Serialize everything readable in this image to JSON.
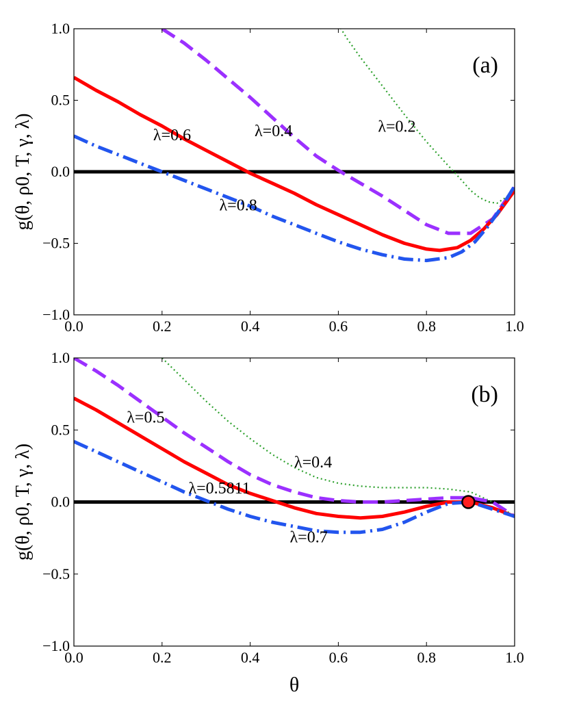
{
  "chart_data": [
    {
      "type": "line",
      "panel_label": "(a)",
      "xlabel": "",
      "ylabel": "g(θ, ρ0, T, γ, λ)",
      "xlim": [
        0.0,
        1.0
      ],
      "ylim": [
        -1.0,
        1.0
      ],
      "xticks": [
        "0.0",
        "0.2",
        "0.4",
        "0.6",
        "0.8",
        "1.0"
      ],
      "yticks": [
        "−1.0",
        "−0.5",
        "0.0",
        "0.5",
        "1.0"
      ],
      "zero_line": true,
      "series": [
        {
          "name": "λ=0.2",
          "style": "dotted",
          "color": "#2ca02c",
          "x": [
            0.6,
            0.62,
            0.65,
            0.7,
            0.75,
            0.8,
            0.85,
            0.88,
            0.9,
            0.92,
            0.94,
            0.96,
            0.98,
            1.0
          ],
          "y": [
            1.03,
            0.93,
            0.8,
            0.6,
            0.4,
            0.21,
            0.04,
            -0.06,
            -0.13,
            -0.18,
            -0.21,
            -0.22,
            -0.18,
            -0.12
          ]
        },
        {
          "name": "λ=0.4",
          "style": "dashed",
          "color": "#9b30ff",
          "x": [
            0.2,
            0.25,
            0.3,
            0.35,
            0.4,
            0.45,
            0.5,
            0.55,
            0.6,
            0.65,
            0.7,
            0.75,
            0.8,
            0.85,
            0.9,
            0.95,
            1.0
          ],
          "y": [
            1.0,
            0.9,
            0.78,
            0.65,
            0.52,
            0.38,
            0.24,
            0.11,
            0.01,
            -0.08,
            -0.17,
            -0.27,
            -0.37,
            -0.43,
            -0.43,
            -0.33,
            -0.11
          ]
        },
        {
          "name": "λ=0.6",
          "style": "solid",
          "color": "#ff0000",
          "x": [
            0.0,
            0.05,
            0.1,
            0.15,
            0.2,
            0.25,
            0.3,
            0.35,
            0.4,
            0.45,
            0.5,
            0.55,
            0.6,
            0.65,
            0.7,
            0.75,
            0.8,
            0.83,
            0.87,
            0.9,
            0.93,
            0.96,
            1.0
          ],
          "y": [
            0.66,
            0.57,
            0.49,
            0.4,
            0.32,
            0.23,
            0.15,
            0.07,
            -0.01,
            -0.08,
            -0.15,
            -0.23,
            -0.3,
            -0.37,
            -0.44,
            -0.5,
            -0.54,
            -0.55,
            -0.53,
            -0.48,
            -0.4,
            -0.3,
            -0.13
          ]
        },
        {
          "name": "λ=0.8",
          "style": "dashdot",
          "color": "#2255ee",
          "x": [
            0.0,
            0.05,
            0.1,
            0.15,
            0.2,
            0.25,
            0.3,
            0.35,
            0.4,
            0.45,
            0.5,
            0.55,
            0.6,
            0.65,
            0.7,
            0.75,
            0.8,
            0.85,
            0.88,
            0.91,
            0.94,
            0.97,
            1.0
          ],
          "y": [
            0.25,
            0.18,
            0.12,
            0.06,
            0.0,
            -0.06,
            -0.12,
            -0.18,
            -0.24,
            -0.31,
            -0.37,
            -0.43,
            -0.49,
            -0.54,
            -0.58,
            -0.61,
            -0.62,
            -0.6,
            -0.56,
            -0.49,
            -0.38,
            -0.25,
            -0.1
          ]
        }
      ],
      "annotations": [
        {
          "text": "λ=0.6",
          "x": 0.18,
          "y": 0.22
        },
        {
          "text": "λ=0.4",
          "x": 0.41,
          "y": 0.25
        },
        {
          "text": "λ=0.2",
          "x": 0.69,
          "y": 0.28
        },
        {
          "text": "λ=0.8",
          "x": 0.33,
          "y": -0.27
        }
      ]
    },
    {
      "type": "line",
      "panel_label": "(b)",
      "xlabel": "θ",
      "ylabel": "g(θ, ρ0, T, γ, λ)",
      "xlim": [
        0.0,
        1.0
      ],
      "ylim": [
        -1.0,
        1.0
      ],
      "xticks": [
        "0.0",
        "0.2",
        "0.4",
        "0.6",
        "0.8",
        "1.0"
      ],
      "yticks": [
        "−1.0",
        "−0.5",
        "0.0",
        "0.5",
        "1.0"
      ],
      "zero_line": true,
      "marker": {
        "x": 0.895,
        "y": 0.0,
        "color": "#ff2020"
      },
      "series": [
        {
          "name": "λ=0.4",
          "style": "dotted",
          "color": "#2ca02c",
          "x": [
            0.2,
            0.25,
            0.3,
            0.35,
            0.4,
            0.45,
            0.5,
            0.55,
            0.6,
            0.65,
            0.7,
            0.75,
            0.8,
            0.85,
            0.9,
            0.95,
            1.0
          ],
          "y": [
            1.0,
            0.85,
            0.7,
            0.56,
            0.44,
            0.33,
            0.24,
            0.17,
            0.13,
            0.11,
            0.1,
            0.1,
            0.1,
            0.09,
            0.07,
            0.0,
            -0.1
          ]
        },
        {
          "name": "λ=0.5",
          "style": "dashed",
          "color": "#9b30ff",
          "x": [
            0.0,
            0.05,
            0.1,
            0.15,
            0.2,
            0.25,
            0.3,
            0.35,
            0.4,
            0.45,
            0.5,
            0.55,
            0.6,
            0.65,
            0.7,
            0.75,
            0.8,
            0.85,
            0.9,
            0.95,
            1.0
          ],
          "y": [
            1.0,
            0.91,
            0.81,
            0.7,
            0.59,
            0.48,
            0.38,
            0.28,
            0.19,
            0.12,
            0.07,
            0.03,
            0.01,
            0.0,
            0.0,
            0.01,
            0.02,
            0.03,
            0.03,
            0.0,
            -0.1
          ]
        },
        {
          "name": "λ=0.5811",
          "style": "solid",
          "color": "#ff0000",
          "x": [
            0.0,
            0.05,
            0.1,
            0.15,
            0.2,
            0.25,
            0.3,
            0.35,
            0.4,
            0.45,
            0.5,
            0.55,
            0.6,
            0.65,
            0.7,
            0.75,
            0.8,
            0.85,
            0.9,
            0.95,
            1.0
          ],
          "y": [
            0.72,
            0.64,
            0.55,
            0.46,
            0.37,
            0.28,
            0.2,
            0.12,
            0.06,
            0.01,
            -0.04,
            -0.08,
            -0.1,
            -0.11,
            -0.1,
            -0.07,
            -0.03,
            0.0,
            0.0,
            -0.04,
            -0.1
          ]
        },
        {
          "name": "λ=0.7",
          "style": "dashdot",
          "color": "#2255ee",
          "x": [
            0.0,
            0.05,
            0.1,
            0.15,
            0.2,
            0.25,
            0.3,
            0.35,
            0.4,
            0.45,
            0.5,
            0.55,
            0.6,
            0.65,
            0.7,
            0.75,
            0.8,
            0.85,
            0.9,
            0.95,
            1.0
          ],
          "y": [
            0.42,
            0.35,
            0.28,
            0.21,
            0.14,
            0.07,
            0.01,
            -0.05,
            -0.1,
            -0.14,
            -0.17,
            -0.2,
            -0.21,
            -0.21,
            -0.19,
            -0.14,
            -0.07,
            -0.01,
            0.0,
            -0.05,
            -0.1
          ]
        }
      ],
      "annotations": [
        {
          "text": "λ=0.5",
          "x": 0.12,
          "y": 0.55
        },
        {
          "text": "λ=0.4",
          "x": 0.5,
          "y": 0.24
        },
        {
          "text": "λ=0.5811",
          "x": 0.26,
          "y": 0.06
        },
        {
          "text": "λ=0.7",
          "x": 0.49,
          "y": -0.28
        }
      ]
    }
  ]
}
